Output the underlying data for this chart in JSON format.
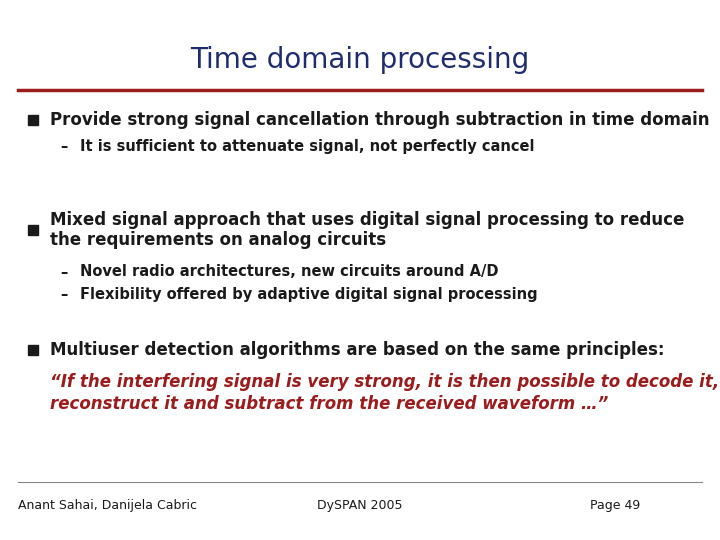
{
  "title": "Time domain processing",
  "title_color": "#1F2D6E",
  "title_fontsize": 20,
  "bg_color": "#FFFFFF",
  "divider_color": "#9B1C1C",
  "bullet_color": "#1A1A1A",
  "text_color": "#1A1A1A",
  "sub_text_color": "#1A1A1A",
  "red_italic_color": "#9B1C1C",
  "footer_color": "#1A1A1A",
  "bullet1": "Provide strong signal cancellation through subtraction in time domain",
  "sub1": "It is sufficient to attenuate signal, not perfectly cancel",
  "bullet2_line1": "Mixed signal approach that uses digital signal processing to reduce",
  "bullet2_line2": "the requirements on analog circuits",
  "sub2a": "Novel radio architectures, new circuits around A/D",
  "sub2b": "Flexibility offered by adaptive digital signal processing",
  "bullet3": "Multiuser detection algorithms are based on the same principles:",
  "quote_line1": "“If the interfering signal is very strong, it is then possible to decode it,",
  "quote_line2": "reconstruct it and subtract from the received waveform …”",
  "footer_left": "Anant Sahai, Danijela Cabric",
  "footer_center": "DySPAN 2005",
  "footer_right": "Page 49",
  "bullet_size": 10,
  "main_fontsize": 12,
  "sub_fontsize": 10.5,
  "footer_fontsize": 9
}
